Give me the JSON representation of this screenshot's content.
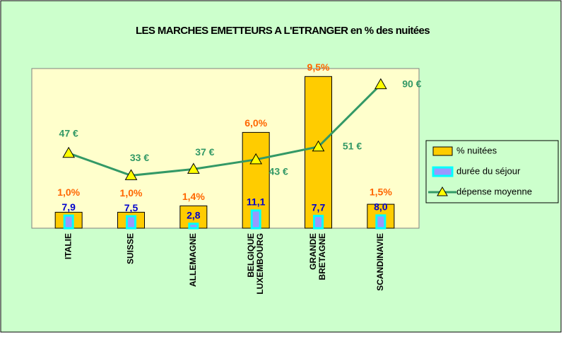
{
  "chart_data": {
    "type": "bar",
    "title": "LES MARCHES EMETTEURS A L'ETRANGER en % des nuitées",
    "categories": [
      [
        "ITALIE"
      ],
      [
        "SUISSE"
      ],
      [
        "ALLEMAGNE"
      ],
      [
        "BELGIQUE",
        "LUXEMBOURG"
      ],
      [
        "GRANDE",
        "BRETAGNE"
      ],
      [
        "SCANDINAVIE"
      ]
    ],
    "ylim": [
      0,
      10
    ],
    "y2lim": [
      0,
      100
    ],
    "series": [
      {
        "name": "% nuitées",
        "type": "bar",
        "color": "#ffcc00",
        "label_color": "#ff6600",
        "values": [
          1.0,
          1.0,
          1.4,
          6.0,
          9.5,
          1.5
        ],
        "value_labels": [
          "1,0%",
          "1,0%",
          "1,4%",
          "6,0%",
          "9,5%",
          "1,5%"
        ]
      },
      {
        "name": "durée du séjour",
        "type": "bar",
        "axis": "y2",
        "color": "#9999ff",
        "border": "#00ffff",
        "label_color": "#0000cc",
        "values": [
          7.9,
          7.5,
          2.8,
          11.1,
          7.7,
          8.0
        ],
        "value_labels": [
          "7,9",
          "7,5",
          "2,8",
          "11,1",
          "7,7",
          "8,0"
        ]
      },
      {
        "name": "dépense moyenne",
        "type": "line",
        "axis": "y2",
        "color": "#339966",
        "marker_color": "#ffff00",
        "label_color": "#339966",
        "values": [
          47,
          33,
          37,
          43,
          51,
          90
        ],
        "value_labels": [
          "47 €",
          "33 €",
          "37 €",
          "43 €",
          "51 €",
          "90 €"
        ]
      }
    ]
  }
}
